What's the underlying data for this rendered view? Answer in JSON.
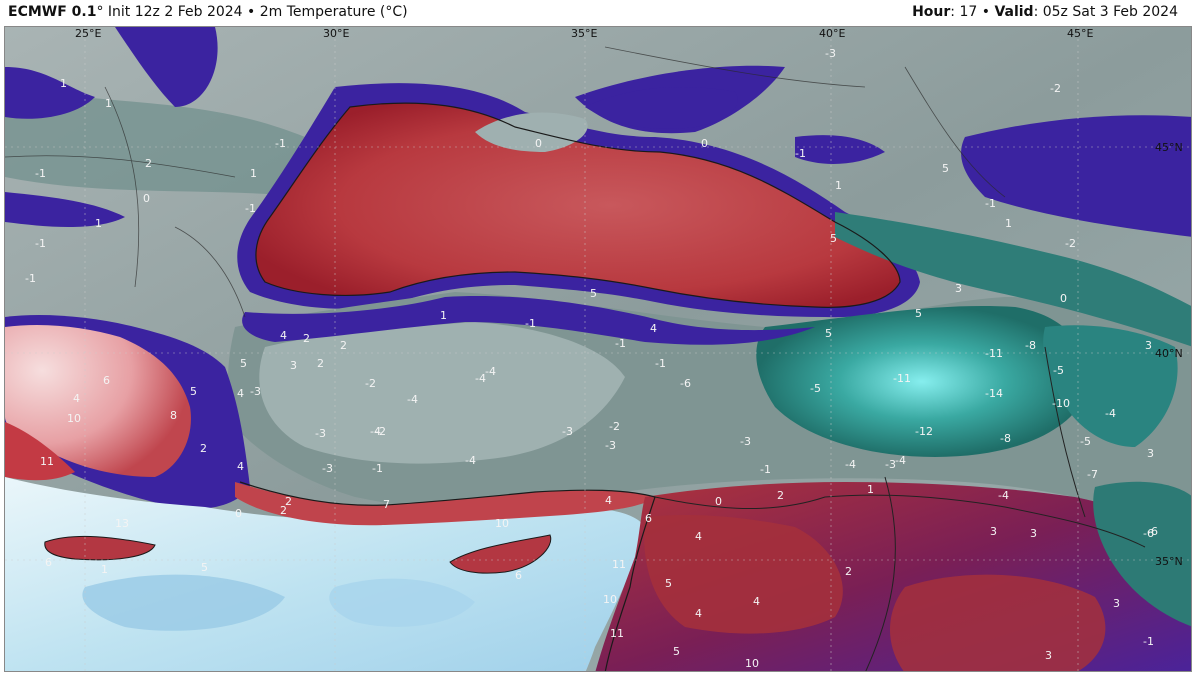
{
  "header": {
    "model": "ECMWF 0.1",
    "degree": "°",
    "init": " Init 12z 2 Feb 2024",
    "sep": " • ",
    "field": "2m Temperature (°C)",
    "hour_label": "Hour",
    "hour_value": ": 17",
    "valid_label": "Valid",
    "valid_value": ": 05z Sat 3 Feb 2024"
  },
  "map": {
    "lon_labels": [
      "25°E",
      "30°E",
      "35°E",
      "40°E",
      "45°E"
    ],
    "lat_labels": [
      "45°N",
      "40°N",
      "35°N"
    ],
    "colors": {
      "deep_sea_warm": "#b03238",
      "warm_red": "#c4555a",
      "purple": "#3b23a0",
      "land_grey": "#9aa6a6",
      "dark_teal": "#1f6e68",
      "cyan": "#7fe6e6",
      "sea_light_blue": "#b9e0ef",
      "coast": "#1a1a1a"
    },
    "contour_values": [
      "1",
      "1",
      "-1",
      "2",
      "-1",
      "1",
      "0",
      "1",
      "-1",
      "-1",
      "-1",
      "0",
      "-3",
      "-2",
      "-1",
      "1",
      "5",
      "0",
      "-1",
      "5",
      "3",
      "0",
      "-2",
      "1",
      "5",
      "4",
      "5",
      "5",
      "-1",
      "-1",
      "-1",
      "-3",
      "-2",
      "1",
      "4",
      "2",
      "2",
      "3",
      "2",
      "5",
      "-4",
      "-4",
      "-6",
      "-5",
      "-11",
      "-11",
      "-8",
      "-5",
      "3",
      "4",
      "-2",
      "-4",
      "-14",
      "-10",
      "-4",
      "3",
      "-6",
      "-3",
      "-4",
      "-3",
      "-2",
      "-3",
      "-3",
      "-12",
      "-8",
      "-5",
      "-4",
      "8",
      "5",
      "2",
      "4",
      "-4",
      "-3",
      "-1",
      "-4",
      "-3",
      "-1",
      "-7",
      "10",
      "6",
      "4",
      "4",
      "0",
      "2",
      "1",
      "-4",
      "3",
      "-6",
      "7",
      "2",
      "6",
      "4",
      "5",
      "3",
      "3",
      "4",
      "11",
      "2",
      "11",
      "10",
      "3",
      "5",
      "-1",
      "13",
      "6",
      "10",
      "11",
      "4",
      "6",
      "1",
      "5",
      "2",
      "0",
      "10"
    ]
  }
}
